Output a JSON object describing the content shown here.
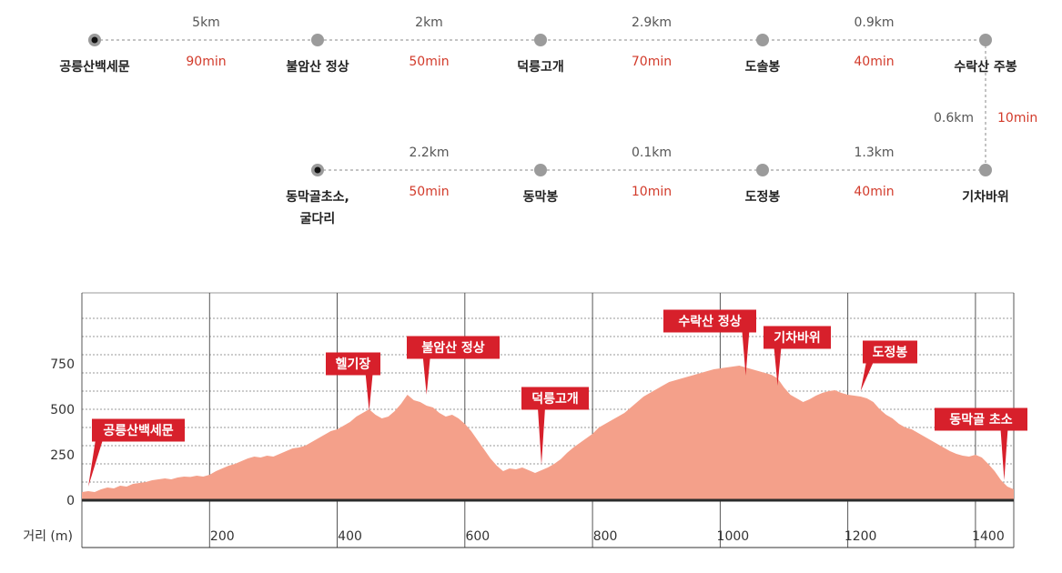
{
  "colors": {
    "fill": "#f4a08a",
    "outline": "#c85c45",
    "label_bg": "#d7202b",
    "time_text": "#d23a2a",
    "node": "#9b9b9b",
    "baseline": "#2b2b2b",
    "grid": "#777777"
  },
  "route": {
    "row1": {
      "stops": [
        "공릉산백세문",
        "불암산 정상",
        "덕릉고개",
        "도솔봉",
        "수락산 주봉"
      ],
      "segments": [
        {
          "dist": "5km",
          "time": "90min"
        },
        {
          "dist": "2km",
          "time": "50min"
        },
        {
          "dist": "2.9km",
          "time": "70min"
        },
        {
          "dist": "0.9km",
          "time": "40min"
        }
      ]
    },
    "vertical": {
      "dist": "0.6km",
      "time": "10min"
    },
    "row2": {
      "stops": [
        [
          "동막골초소,",
          "굴다리"
        ],
        [
          "동막봉"
        ],
        [
          "도정봉"
        ],
        [
          "기차바위"
        ]
      ],
      "segments": [
        {
          "dist": "2.2km",
          "time": "50min"
        },
        {
          "dist": "0.1km",
          "time": "10min"
        },
        {
          "dist": "1.3km",
          "time": "40min"
        }
      ]
    }
  },
  "chart_data": {
    "type": "area",
    "xlabel": "거리 (m)",
    "ylabel": "",
    "xlim": [
      0,
      1460
    ],
    "ylim": [
      0,
      1000
    ],
    "x_ticks": [
      200,
      400,
      600,
      800,
      1000,
      1200,
      1400
    ],
    "x_tick_labels": [
      "200",
      "400",
      "600",
      "800",
      "1000",
      "1200",
      "1400"
    ],
    "y_ticks": [
      0,
      250,
      500,
      750
    ],
    "y_tick_labels": [
      "0",
      "250",
      "500",
      "750"
    ],
    "grid": true,
    "series": [
      {
        "x": [
          0,
          10,
          20,
          30,
          40,
          50,
          60,
          70,
          80,
          90,
          100,
          110,
          120,
          130,
          140,
          150,
          160,
          170,
          180,
          190,
          200,
          210,
          220,
          230,
          240,
          250,
          260,
          270,
          280,
          290,
          300,
          310,
          320,
          330,
          340,
          350,
          360,
          370,
          380,
          390,
          400,
          410,
          420,
          430,
          440,
          450,
          460,
          470,
          480,
          490,
          500,
          510,
          520,
          530,
          540,
          550,
          560,
          570,
          580,
          590,
          600,
          610,
          620,
          630,
          640,
          650,
          660,
          670,
          680,
          690,
          700,
          710,
          720,
          730,
          740,
          750,
          760,
          770,
          780,
          790,
          800,
          810,
          820,
          830,
          840,
          850,
          860,
          870,
          880,
          890,
          900,
          910,
          920,
          930,
          940,
          950,
          960,
          970,
          980,
          990,
          1000,
          1010,
          1020,
          1030,
          1040,
          1050,
          1060,
          1070,
          1080,
          1090,
          1100,
          1110,
          1120,
          1130,
          1140,
          1150,
          1160,
          1170,
          1180,
          1190,
          1200,
          1210,
          1220,
          1230,
          1240,
          1250,
          1260,
          1270,
          1280,
          1290,
          1300,
          1310,
          1320,
          1330,
          1340,
          1350,
          1360,
          1370,
          1380,
          1390,
          1400,
          1410,
          1420,
          1430,
          1440,
          1450,
          1460
        ],
        "y": [
          45,
          50,
          45,
          60,
          70,
          65,
          80,
          75,
          90,
          95,
          100,
          110,
          115,
          120,
          115,
          125,
          130,
          128,
          135,
          130,
          140,
          160,
          175,
          190,
          200,
          215,
          230,
          240,
          235,
          245,
          240,
          255,
          270,
          285,
          290,
          300,
          320,
          340,
          360,
          380,
          390,
          410,
          430,
          460,
          480,
          500,
          470,
          450,
          460,
          490,
          530,
          580,
          550,
          540,
          520,
          510,
          480,
          460,
          470,
          450,
          420,
          380,
          330,
          280,
          230,
          190,
          160,
          175,
          170,
          180,
          165,
          150,
          165,
          180,
          200,
          225,
          260,
          290,
          315,
          340,
          365,
          400,
          420,
          440,
          460,
          480,
          510,
          540,
          570,
          590,
          610,
          630,
          650,
          660,
          670,
          680,
          690,
          700,
          710,
          720,
          725,
          730,
          735,
          740,
          730,
          720,
          710,
          700,
          690,
          670,
          620,
          580,
          560,
          540,
          555,
          575,
          590,
          600,
          605,
          590,
          580,
          575,
          570,
          560,
          540,
          500,
          470,
          450,
          420,
          400,
          390,
          370,
          350,
          330,
          310,
          290,
          270,
          255,
          245,
          240,
          250,
          235,
          200,
          160,
          110,
          75,
          60
        ]
      }
    ],
    "annotations": [
      {
        "label": "공릉산백세문",
        "x": 10,
        "y": 55
      },
      {
        "label": "헬기장",
        "x": 450,
        "y": 470
      },
      {
        "label": "불암산 정상",
        "x": 540,
        "y": 560
      },
      {
        "label": "덕릉고개",
        "x": 720,
        "y": 175
      },
      {
        "label": "수락산 정상",
        "x": 1040,
        "y": 665
      },
      {
        "label": "기차바위",
        "x": 1090,
        "y": 610
      },
      {
        "label": "도정봉",
        "x": 1220,
        "y": 580
      },
      {
        "label": "동막골 초소",
        "x": 1445,
        "y": 90
      }
    ]
  }
}
